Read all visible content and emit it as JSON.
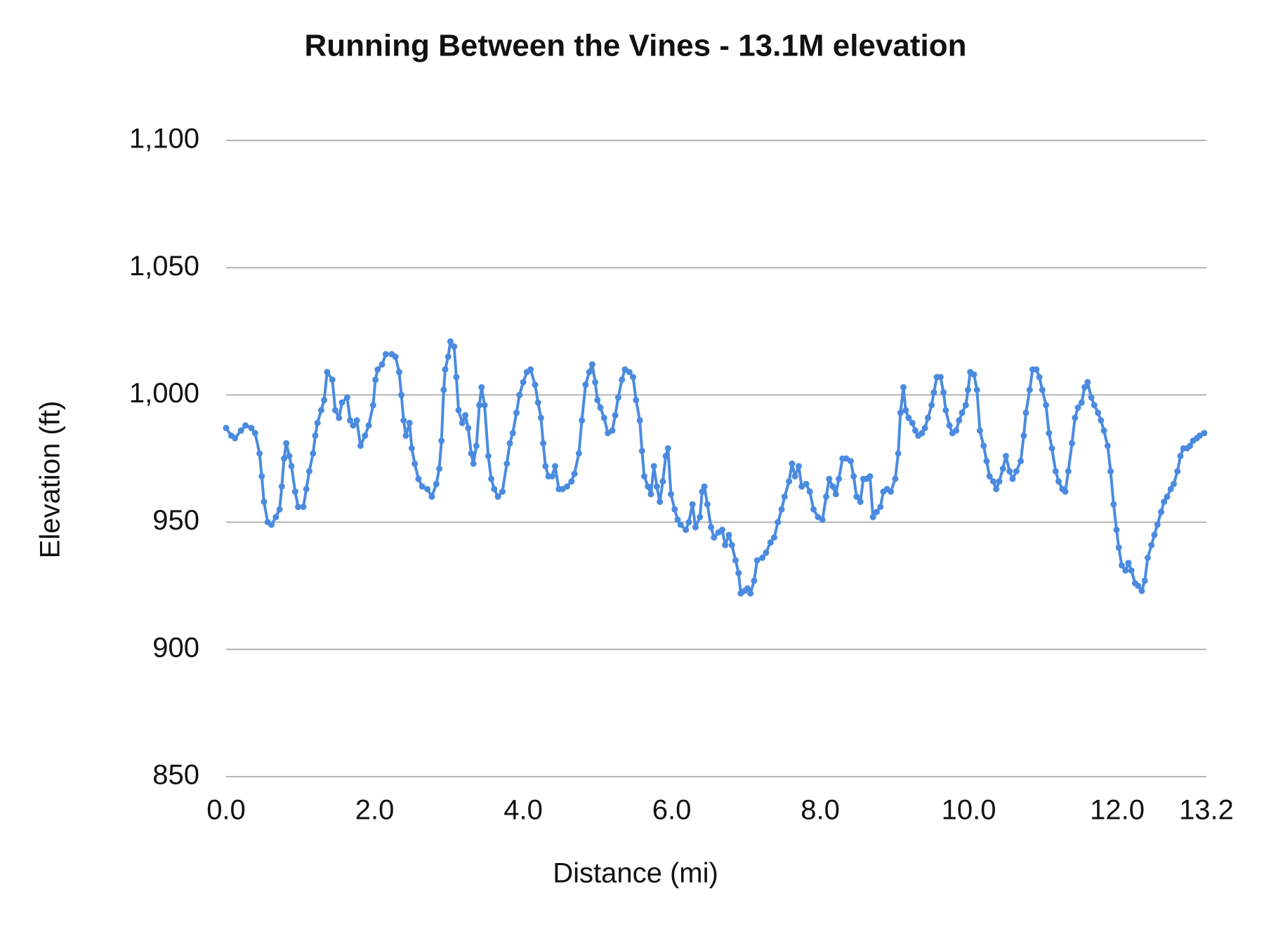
{
  "chart_data": {
    "type": "line",
    "title": "Running Between the Vines - 13.1M elevation",
    "x_label": "Distance (mi)",
    "y_label": "Elevation (ft)",
    "xlim": [
      0,
      13.2
    ],
    "xticks": [
      {
        "value": 0,
        "label": "0.0"
      },
      {
        "value": 2,
        "label": "2.0"
      },
      {
        "value": 4,
        "label": "4.0"
      },
      {
        "value": 6,
        "label": "6.0"
      },
      {
        "value": 8,
        "label": "8.0"
      },
      {
        "value": 10,
        "label": "10.0"
      },
      {
        "value": 12,
        "label": "12.0"
      },
      13.2
    ],
    "ylim": [
      850,
      1100
    ],
    "yticks": [
      850,
      900,
      950,
      {
        "value": 1000,
        "label": "1,000"
      },
      {
        "value": 1050,
        "label": "1,050"
      },
      {
        "value": 1100,
        "label": "1,100"
      }
    ],
    "grid": true,
    "series": [
      {
        "color": "#4a8be0",
        "x": [
          0.0,
          0.07,
          0.12,
          0.2,
          0.26,
          0.34,
          0.39,
          0.45,
          0.48,
          0.51,
          0.56,
          0.61,
          0.67,
          0.72,
          0.75,
          0.78,
          0.81,
          0.85,
          0.88,
          0.93,
          0.97,
          1.04,
          1.08,
          1.12,
          1.17,
          1.2,
          1.23,
          1.28,
          1.32,
          1.36,
          1.43,
          1.47,
          1.52,
          1.56,
          1.63,
          1.67,
          1.71,
          1.76,
          1.81,
          1.87,
          1.92,
          1.98,
          2.01,
          2.04,
          2.1,
          2.15,
          2.23,
          2.28,
          2.33,
          2.36,
          2.39,
          2.42,
          2.47,
          2.5,
          2.54,
          2.59,
          2.64,
          2.71,
          2.77,
          2.83,
          2.87,
          2.9,
          2.93,
          2.95,
          2.99,
          3.02,
          3.07,
          3.1,
          3.13,
          3.18,
          3.22,
          3.26,
          3.3,
          3.33,
          3.37,
          3.41,
          3.44,
          3.48,
          3.53,
          3.57,
          3.61,
          3.66,
          3.72,
          3.78,
          3.82,
          3.86,
          3.91,
          3.95,
          4.0,
          4.05,
          4.1,
          4.16,
          4.2,
          4.24,
          4.27,
          4.3,
          4.34,
          4.39,
          4.43,
          4.48,
          4.53,
          4.59,
          4.65,
          4.69,
          4.75,
          4.79,
          4.84,
          4.89,
          4.93,
          4.97,
          5.0,
          5.04,
          5.09,
          5.14,
          5.2,
          5.24,
          5.28,
          5.33,
          5.37,
          5.43,
          5.48,
          5.52,
          5.57,
          5.6,
          5.63,
          5.68,
          5.72,
          5.76,
          5.8,
          5.84,
          5.88,
          5.92,
          5.95,
          5.99,
          6.04,
          6.08,
          6.12,
          6.19,
          6.23,
          6.28,
          6.32,
          6.38,
          6.41,
          6.44,
          6.48,
          6.53,
          6.57,
          6.63,
          6.68,
          6.72,
          6.77,
          6.81,
          6.86,
          6.9,
          6.93,
          6.98,
          7.02,
          7.06,
          7.11,
          7.15,
          7.22,
          7.27,
          7.33,
          7.38,
          7.43,
          7.48,
          7.52,
          7.58,
          7.62,
          7.66,
          7.71,
          7.75,
          7.81,
          7.86,
          7.91,
          7.97,
          8.03,
          8.08,
          8.12,
          8.17,
          8.21,
          8.25,
          8.3,
          8.35,
          8.41,
          8.45,
          8.49,
          8.54,
          8.58,
          8.62,
          8.67,
          8.71,
          8.76,
          8.81,
          8.85,
          8.9,
          8.95,
          9.01,
          9.05,
          9.08,
          9.12,
          9.15,
          9.19,
          9.24,
          9.28,
          9.32,
          9.37,
          9.41,
          9.45,
          9.5,
          9.53,
          9.57,
          9.62,
          9.66,
          9.69,
          9.74,
          9.78,
          9.83,
          9.87,
          9.91,
          9.96,
          9.99,
          10.02,
          10.07,
          10.11,
          10.15,
          10.2,
          10.24,
          10.28,
          10.33,
          10.37,
          10.41,
          10.46,
          10.5,
          10.55,
          10.59,
          10.64,
          10.7,
          10.74,
          10.77,
          10.82,
          10.86,
          10.91,
          10.95,
          10.99,
          11.04,
          11.08,
          11.12,
          11.17,
          11.21,
          11.26,
          11.3,
          11.34,
          11.39,
          11.43,
          11.47,
          11.52,
          11.56,
          11.6,
          11.65,
          11.69,
          11.74,
          11.78,
          11.82,
          11.87,
          11.91,
          11.95,
          11.99,
          12.02,
          12.06,
          12.11,
          12.15,
          12.19,
          12.24,
          12.28,
          12.33,
          12.37,
          12.41,
          12.46,
          12.5,
          12.54,
          12.59,
          12.63,
          12.67,
          12.72,
          12.76,
          12.81,
          12.85,
          12.89,
          12.94,
          12.98,
          13.02,
          13.07,
          13.11,
          13.17
        ],
        "values": [
          987,
          984,
          983,
          986,
          988,
          987,
          985,
          977,
          968,
          958,
          950,
          949,
          952,
          955,
          964,
          975,
          981,
          976,
          972,
          962,
          956,
          956,
          963,
          970,
          977,
          984,
          989,
          994,
          998,
          1009,
          1006,
          994,
          991,
          997,
          999,
          990,
          988,
          990,
          980,
          984,
          988,
          996,
          1006,
          1010,
          1012,
          1016,
          1016,
          1015,
          1009,
          1000,
          990,
          984,
          989,
          979,
          973,
          967,
          964,
          963,
          960,
          965,
          971,
          982,
          1002,
          1010,
          1015,
          1021,
          1019,
          1007,
          994,
          989,
          992,
          987,
          977,
          973,
          980,
          996,
          1003,
          996,
          976,
          967,
          963,
          960,
          962,
          973,
          981,
          985,
          993,
          1000,
          1005,
          1009,
          1010,
          1004,
          997,
          991,
          981,
          972,
          968,
          968,
          972,
          963,
          963,
          964,
          966,
          969,
          977,
          990,
          1004,
          1009,
          1012,
          1005,
          998,
          995,
          991,
          985,
          986,
          992,
          999,
          1006,
          1010,
          1009,
          1007,
          998,
          990,
          978,
          968,
          964,
          961,
          972,
          964,
          958,
          966,
          976,
          979,
          961,
          955,
          951,
          949,
          947,
          950,
          957,
          948,
          952,
          962,
          964,
          957,
          948,
          944,
          946,
          947,
          941,
          945,
          941,
          935,
          930,
          922,
          923,
          924,
          922,
          927,
          935,
          936,
          938,
          942,
          944,
          950,
          955,
          960,
          966,
          973,
          968,
          972,
          964,
          965,
          962,
          955,
          952,
          951,
          960,
          967,
          964,
          961,
          967,
          975,
          975,
          974,
          968,
          960,
          958,
          967,
          967,
          968,
          952,
          954,
          956,
          962,
          963,
          962,
          967,
          977,
          993,
          1003,
          994,
          991,
          989,
          986,
          984,
          985,
          987,
          991,
          996,
          1001,
          1007,
          1007,
          1001,
          994,
          988,
          985,
          986,
          990,
          993,
          996,
          1002,
          1009,
          1008,
          1002,
          986,
          980,
          974,
          968,
          966,
          963,
          966,
          971,
          976,
          970,
          967,
          970,
          974,
          984,
          993,
          1002,
          1010,
          1010,
          1007,
          1002,
          996,
          985,
          979,
          970,
          966,
          963,
          962,
          970,
          981,
          991,
          995,
          997,
          1003,
          1005,
          999,
          996,
          993,
          990,
          986,
          980,
          970,
          957,
          947,
          940,
          933,
          931,
          934,
          931,
          926,
          925,
          923,
          927,
          936,
          941,
          945,
          949,
          954,
          958,
          960,
          963,
          965,
          970,
          976,
          979,
          979,
          980,
          982,
          983,
          984,
          985
        ]
      }
    ]
  }
}
